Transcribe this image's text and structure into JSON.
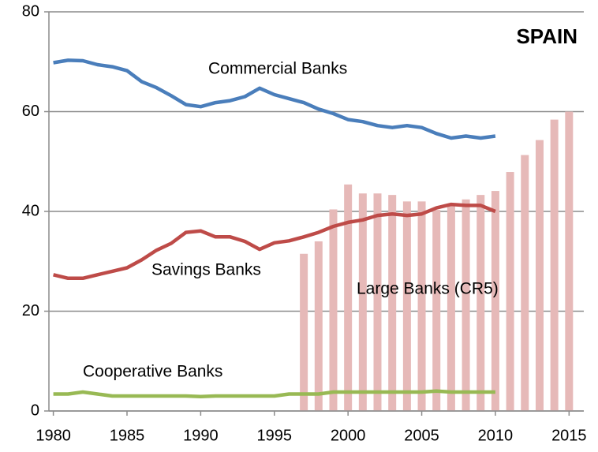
{
  "chart_data": {
    "type": "line",
    "title": "SPAIN",
    "xlim": [
      1979.7,
      2016
    ],
    "xticks": [
      1980,
      1985,
      1990,
      1995,
      2000,
      2005,
      2010,
      2015
    ],
    "ylim": [
      0,
      80
    ],
    "yticks": [
      0,
      20,
      40,
      60,
      80
    ],
    "grid": true,
    "series": [
      {
        "name": "Commercial Banks",
        "type": "line",
        "color": "#4a7ebb",
        "x": [
          1980,
          1981,
          1982,
          1983,
          1984,
          1985,
          1986,
          1987,
          1988,
          1989,
          1990,
          1991,
          1992,
          1993,
          1994,
          1995,
          1996,
          1997,
          1998,
          1999,
          2000,
          2001,
          2002,
          2003,
          2004,
          2005,
          2006,
          2007,
          2008,
          2009,
          2010
        ],
        "values": [
          69.8,
          70.3,
          70.2,
          69.4,
          69.0,
          68.2,
          66.0,
          64.8,
          63.2,
          61.4,
          61.0,
          61.8,
          62.2,
          63.0,
          64.7,
          63.4,
          62.6,
          61.8,
          60.5,
          59.6,
          58.4,
          58.0,
          57.2,
          56.8,
          57.2,
          56.8,
          55.6,
          54.7,
          55.1,
          54.7,
          55.1
        ]
      },
      {
        "name": "Savings Banks",
        "type": "line",
        "color": "#be4b48",
        "x": [
          1980,
          1981,
          1982,
          1983,
          1984,
          1985,
          1986,
          1987,
          1988,
          1989,
          1990,
          1991,
          1992,
          1993,
          1994,
          1995,
          1996,
          1997,
          1998,
          1999,
          2000,
          2001,
          2002,
          2003,
          2004,
          2005,
          2006,
          2007,
          2008,
          2009,
          2010
        ],
        "values": [
          27.3,
          26.6,
          26.6,
          27.3,
          28.0,
          28.7,
          30.3,
          32.2,
          33.6,
          35.8,
          36.1,
          34.9,
          34.9,
          34.0,
          32.4,
          33.7,
          34.1,
          34.9,
          35.8,
          37.0,
          37.8,
          38.3,
          39.2,
          39.5,
          39.2,
          39.5,
          40.7,
          41.4,
          41.2,
          41.2,
          40.0
        ]
      },
      {
        "name": "Cooperative Banks",
        "type": "line",
        "color": "#98b954",
        "x": [
          1980,
          1981,
          1982,
          1983,
          1984,
          1985,
          1986,
          1987,
          1988,
          1989,
          1990,
          1991,
          1992,
          1993,
          1994,
          1995,
          1996,
          1997,
          1998,
          1999,
          2000,
          2001,
          2002,
          2003,
          2004,
          2005,
          2006,
          2007,
          2008,
          2009,
          2010
        ],
        "values": [
          3.4,
          3.4,
          3.8,
          3.4,
          3.0,
          3.0,
          3.0,
          3.0,
          3.0,
          3.0,
          2.9,
          3.0,
          3.0,
          3.0,
          3.0,
          3.0,
          3.4,
          3.4,
          3.4,
          3.8,
          3.8,
          3.8,
          3.8,
          3.8,
          3.8,
          3.8,
          4.0,
          3.8,
          3.8,
          3.8,
          3.8
        ]
      },
      {
        "name": "Large Banks (CR5)",
        "type": "bar",
        "color": "#e6b9b8",
        "x": [
          1997,
          1998,
          1999,
          2000,
          2001,
          2002,
          2003,
          2004,
          2005,
          2006,
          2007,
          2008,
          2009,
          2010,
          2011,
          2012,
          2013,
          2014,
          2015
        ],
        "values": [
          31.5,
          34.0,
          40.4,
          45.4,
          43.6,
          43.6,
          43.3,
          42.0,
          42.0,
          40.3,
          41.5,
          42.4,
          43.3,
          44.1,
          47.9,
          51.3,
          54.3,
          58.4,
          60.0
        ]
      }
    ]
  }
}
